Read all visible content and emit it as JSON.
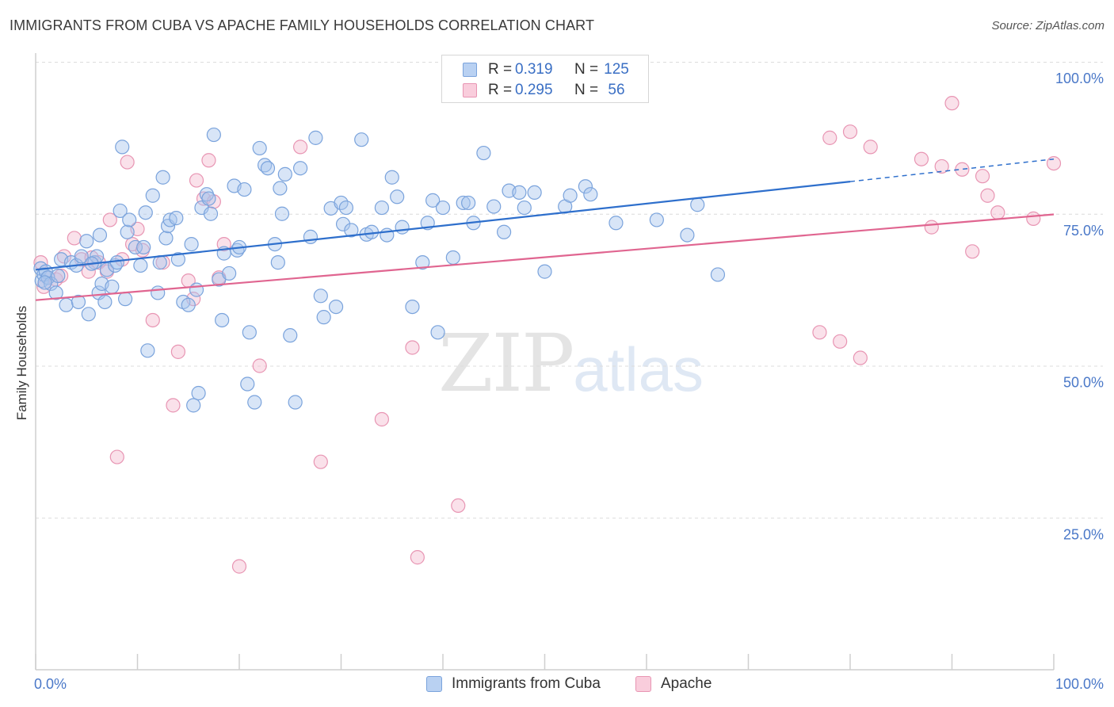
{
  "title": "IMMIGRANTS FROM CUBA VS APACHE FAMILY HOUSEHOLDS CORRELATION CHART",
  "source": "Source: ZipAtlas.com",
  "watermark": {
    "zip": "ZIP",
    "atlas": "atlas"
  },
  "legend": {
    "rows": [
      {
        "r_label": "R =",
        "r_value": "0.319",
        "n_label": "N =",
        "n_value": "125"
      },
      {
        "r_label": "R =",
        "r_value": "0.295",
        "n_label": "N =",
        "n_value": "56"
      }
    ]
  },
  "bottom_legend": [
    {
      "label": "Immigrants from Cuba"
    },
    {
      "label": "Apache"
    }
  ],
  "colors": {
    "blue_fill": "#a9c6ee",
    "blue_stroke": "#7aa3dc",
    "blue_line": "#2e6fcc",
    "pink_fill": "#f5bcd0",
    "pink_stroke": "#e895b3",
    "pink_line": "#e06590",
    "axis_text": "#4a78c8",
    "grid": "#dcdcdc"
  },
  "chart_data": {
    "type": "scatter",
    "title": "IMMIGRANTS FROM CUBA VS APACHE FAMILY HOUSEHOLDS CORRELATION CHART",
    "xlabel": "",
    "ylabel": "Family Households",
    "xlim": [
      0,
      100
    ],
    "ylim": [
      0,
      100
    ],
    "x_tick_labels": [
      "0.0%",
      "100.0%"
    ],
    "y_tick_labels": [
      "25.0%",
      "50.0%",
      "75.0%",
      "100.0%"
    ],
    "y_ticks": [
      25,
      50,
      75,
      100
    ],
    "grid": "horizontal dashed",
    "legend_position": "top-center",
    "series": [
      {
        "name": "Immigrants from Cuba",
        "color": "#a9c6ee",
        "trend": {
          "x0": 0,
          "y0": 65.8,
          "x1": 80,
          "y1": 80.3,
          "dashed_to_x": 100,
          "dashed_to_y": 84.0
        },
        "points": [
          [
            0.5,
            66
          ],
          [
            0.6,
            64
          ],
          [
            0.8,
            65
          ],
          [
            1.0,
            65.5
          ],
          [
            1.2,
            64.5
          ],
          [
            1.5,
            63.5
          ],
          [
            2.0,
            62
          ],
          [
            2.5,
            67.5
          ],
          [
            3.0,
            60
          ],
          [
            3.5,
            67
          ],
          [
            4.0,
            66.5
          ],
          [
            4.2,
            60.5
          ],
          [
            4.5,
            68
          ],
          [
            5.0,
            70.5
          ],
          [
            5.2,
            58.5
          ],
          [
            5.8,
            67
          ],
          [
            6.0,
            68
          ],
          [
            6.2,
            62
          ],
          [
            6.3,
            71.5
          ],
          [
            6.5,
            63.5
          ],
          [
            6.8,
            60.5
          ],
          [
            7.0,
            65.8
          ],
          [
            7.5,
            63
          ],
          [
            7.8,
            66.5
          ],
          [
            8.0,
            67
          ],
          [
            8.3,
            75.5
          ],
          [
            8.5,
            86
          ],
          [
            8.8,
            61
          ],
          [
            9.0,
            72
          ],
          [
            9.2,
            74
          ],
          [
            9.8,
            69.5
          ],
          [
            10.3,
            66.5
          ],
          [
            10.6,
            69.5
          ],
          [
            10.8,
            75.2
          ],
          [
            11.0,
            52.5
          ],
          [
            11.5,
            78
          ],
          [
            12.0,
            62
          ],
          [
            12.2,
            67
          ],
          [
            12.5,
            81
          ],
          [
            12.8,
            71
          ],
          [
            13.0,
            73
          ],
          [
            13.2,
            74
          ],
          [
            13.8,
            74.3
          ],
          [
            14.0,
            67.5
          ],
          [
            14.5,
            60.5
          ],
          [
            15.0,
            60
          ],
          [
            15.3,
            70
          ],
          [
            15.8,
            62.5
          ],
          [
            16.0,
            45.5
          ],
          [
            15.5,
            43.5
          ],
          [
            16.3,
            76
          ],
          [
            16.8,
            78.2
          ],
          [
            17.0,
            77.5
          ],
          [
            17.2,
            75
          ],
          [
            17.5,
            88
          ],
          [
            18.0,
            64.2
          ],
          [
            18.3,
            57.5
          ],
          [
            18.5,
            68.5
          ],
          [
            19.0,
            65.2
          ],
          [
            19.5,
            79.6
          ],
          [
            19.8,
            69
          ],
          [
            20.0,
            69.5
          ],
          [
            20.5,
            79
          ],
          [
            20.8,
            47
          ],
          [
            21.0,
            55.5
          ],
          [
            21.5,
            44
          ],
          [
            22.0,
            85.8
          ],
          [
            22.5,
            83
          ],
          [
            22.8,
            82.5
          ],
          [
            23.5,
            70
          ],
          [
            23.8,
            67
          ],
          [
            24.0,
            79.2
          ],
          [
            24.2,
            75
          ],
          [
            24.5,
            81.5
          ],
          [
            25.0,
            55
          ],
          [
            25.5,
            44
          ],
          [
            26.0,
            82.5
          ],
          [
            27.0,
            71.2
          ],
          [
            27.5,
            87.5
          ],
          [
            28.0,
            61.5
          ],
          [
            28.3,
            58
          ],
          [
            29.0,
            75.9
          ],
          [
            29.5,
            59.7
          ],
          [
            30.0,
            76.8
          ],
          [
            30.2,
            73.3
          ],
          [
            30.5,
            76
          ],
          [
            31.0,
            72.3
          ],
          [
            32.0,
            87.2
          ],
          [
            32.5,
            71.6
          ],
          [
            33.0,
            72
          ],
          [
            34.0,
            76
          ],
          [
            34.5,
            71.5
          ],
          [
            35.0,
            81
          ],
          [
            35.5,
            77.8
          ],
          [
            36.0,
            72.8
          ],
          [
            37.0,
            59.7
          ],
          [
            38.0,
            67
          ],
          [
            38.5,
            73.5
          ],
          [
            39.0,
            77.2
          ],
          [
            39.5,
            55.5
          ],
          [
            40.0,
            76
          ],
          [
            41.0,
            67.8
          ],
          [
            42.0,
            76.8
          ],
          [
            42.5,
            76.8
          ],
          [
            43.0,
            73.5
          ],
          [
            44.0,
            85
          ],
          [
            45.0,
            76.2
          ],
          [
            46.0,
            72
          ],
          [
            46.5,
            78.8
          ],
          [
            47.5,
            78.5
          ],
          [
            48.0,
            76
          ],
          [
            49.0,
            78.5
          ],
          [
            50.0,
            65.5
          ],
          [
            52.0,
            76.2
          ],
          [
            52.5,
            78
          ],
          [
            54.0,
            79.5
          ],
          [
            54.5,
            78.2
          ],
          [
            57.0,
            73.5
          ],
          [
            61.0,
            74
          ],
          [
            64.0,
            71.5
          ],
          [
            65.0,
            76.5
          ],
          [
            67.0,
            65
          ],
          [
            0.9,
            63.7
          ],
          [
            2.2,
            64.8
          ],
          [
            5.5,
            66.8
          ]
        ]
      },
      {
        "name": "Apache",
        "color": "#f5bcd0",
        "trend": {
          "x0": 0,
          "y0": 60.8,
          "x1": 100,
          "y1": 74.9
        },
        "points": [
          [
            0.5,
            67
          ],
          [
            0.8,
            63
          ],
          [
            1.2,
            64.5
          ],
          [
            2.0,
            64.2
          ],
          [
            2.5,
            64.8
          ],
          [
            2.8,
            68
          ],
          [
            3.8,
            71
          ],
          [
            4.5,
            67.5
          ],
          [
            5.2,
            65.5
          ],
          [
            5.5,
            67.8
          ],
          [
            6.2,
            67
          ],
          [
            7.0,
            65.5
          ],
          [
            7.3,
            74
          ],
          [
            8.0,
            35
          ],
          [
            8.5,
            67.5
          ],
          [
            9.0,
            83.5
          ],
          [
            9.5,
            70
          ],
          [
            10.0,
            72.5
          ],
          [
            10.5,
            69
          ],
          [
            11.5,
            57.5
          ],
          [
            12.5,
            67
          ],
          [
            13.5,
            43.5
          ],
          [
            14.0,
            52.3
          ],
          [
            15.0,
            64
          ],
          [
            15.5,
            61
          ],
          [
            15.8,
            80.5
          ],
          [
            16.5,
            77.5
          ],
          [
            17.0,
            83.8
          ],
          [
            17.5,
            77
          ],
          [
            18.0,
            64.5
          ],
          [
            18.5,
            70
          ],
          [
            20.0,
            17
          ],
          [
            22.0,
            50
          ],
          [
            26.0,
            86
          ],
          [
            28.0,
            34.2
          ],
          [
            34.0,
            41.2
          ],
          [
            37.0,
            53
          ],
          [
            37.5,
            18.5
          ],
          [
            41.5,
            27
          ],
          [
            77.0,
            55.5
          ],
          [
            78.0,
            87.5
          ],
          [
            79.0,
            54
          ],
          [
            80.0,
            88.5
          ],
          [
            81.0,
            51.3
          ],
          [
            82.0,
            86
          ],
          [
            87.0,
            84
          ],
          [
            88.0,
            72.8
          ],
          [
            89.0,
            82.8
          ],
          [
            90.0,
            93.2
          ],
          [
            91.0,
            82.3
          ],
          [
            92.0,
            68.8
          ],
          [
            93.0,
            81.2
          ],
          [
            93.5,
            78
          ],
          [
            94.5,
            75.2
          ],
          [
            98.0,
            74.2
          ],
          [
            100.0,
            83.3
          ]
        ]
      }
    ]
  }
}
